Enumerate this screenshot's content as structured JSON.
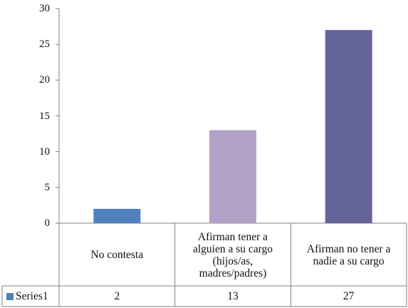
{
  "chart_data": {
    "type": "bar",
    "categories": [
      "No contesta",
      "Afirman tener a alguien a su cargo (hijos/as, madres/padres)",
      "Afirman no tener a nadie a su cargo"
    ],
    "category_lines": [
      [
        "No contesta"
      ],
      [
        "Afirman tener a",
        "alguien a su cargo",
        "(hijos/as,",
        "madres/padres)"
      ],
      [
        "Afirman no tener a",
        "nadie a su cargo"
      ]
    ],
    "series": [
      {
        "name": "Series1",
        "values": [
          2,
          13,
          27
        ],
        "colors": [
          "#4f81bd",
          "#b3a2c7",
          "#65649a"
        ]
      }
    ],
    "legend_color": "#4f81bd",
    "y_ticks": [
      "0",
      "5",
      "10",
      "15",
      "20",
      "25",
      "30"
    ],
    "ylim": [
      0,
      30
    ],
    "data_table": true,
    "grid": false
  }
}
